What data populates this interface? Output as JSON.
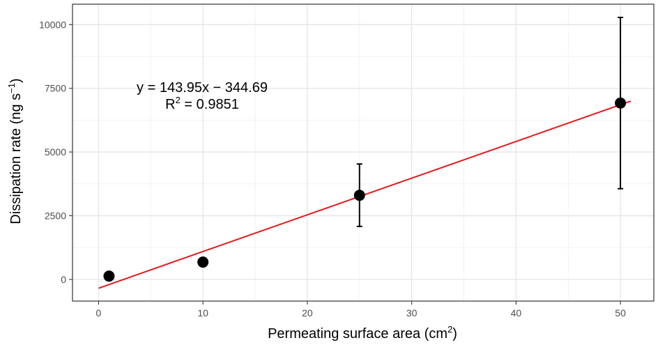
{
  "chart_data": {
    "type": "scatter",
    "x_label": {
      "text": "Permeating surface area (cm",
      "sup": "2",
      "close": ")"
    },
    "y_label": {
      "text": "Dissipation rate (ng s",
      "sup": "−1",
      "close": ")"
    },
    "xlim": [
      -2.5,
      53.2
    ],
    "ylim": [
      -850,
      10800
    ],
    "x_ticks": [
      0,
      10,
      20,
      30,
      40,
      50
    ],
    "y_ticks": [
      0,
      2500,
      5000,
      7500,
      10000
    ],
    "grid": true,
    "points": [
      {
        "x": 1,
        "y": 130,
        "err_low": 130,
        "err_high": 130
      },
      {
        "x": 10,
        "y": 680,
        "err_low": 520,
        "err_high": 840
      },
      {
        "x": 25,
        "y": 3300,
        "err_low": 2080,
        "err_high": 4530
      },
      {
        "x": 50,
        "y": 6920,
        "err_low": 3560,
        "err_high": 10280
      }
    ],
    "fit": {
      "slope": 143.95,
      "intercept": -344.69,
      "x_range": [
        0,
        51
      ],
      "color": "#e41a1c"
    },
    "equation": "y = 143.95x − 344.69",
    "r2": {
      "prefix": "R",
      "sup": "2",
      "rest": " = 0.9851"
    }
  }
}
